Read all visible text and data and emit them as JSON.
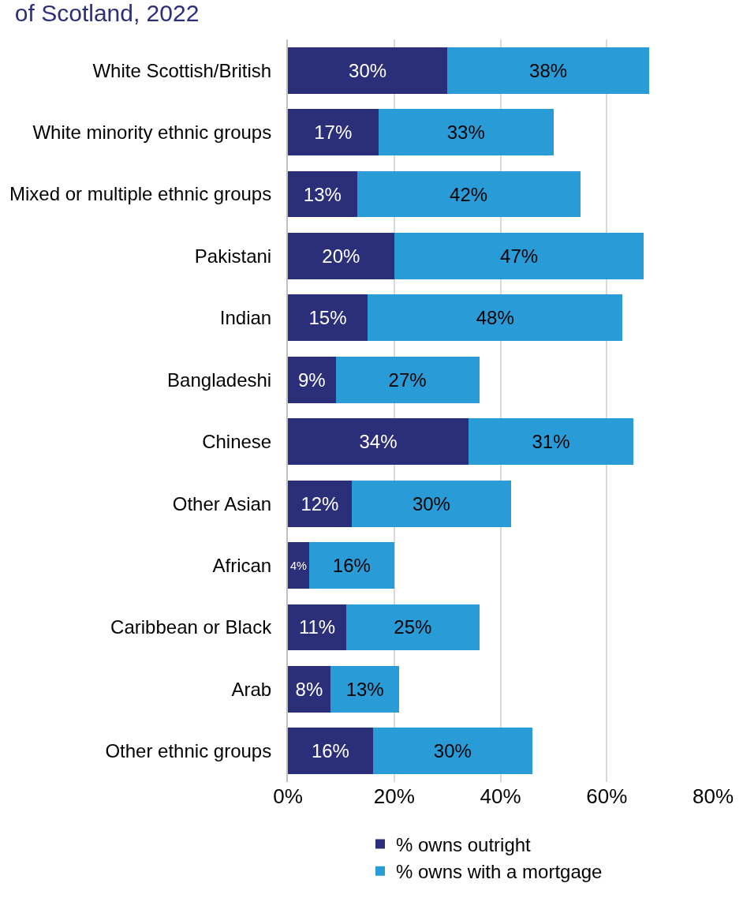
{
  "chart_data": {
    "type": "bar",
    "title": "of Scotland, 2022",
    "orientation": "horizontal",
    "stacked": true,
    "categories": [
      "White Scottish/British",
      "White minority ethnic groups",
      "Mixed or multiple ethnic groups",
      "Pakistani",
      "Indian",
      "Bangladeshi",
      "Chinese",
      "Other Asian",
      "African",
      "Caribbean or Black",
      "Arab",
      "Other ethnic groups"
    ],
    "series": [
      {
        "name": "% owns outright",
        "color": "#2b2f7a",
        "values": [
          30,
          17,
          13,
          20,
          15,
          9,
          34,
          12,
          4,
          11,
          8,
          16
        ],
        "value_labels": [
          "30%",
          "17%",
          "13%",
          "20%",
          "15%",
          "9%",
          "34%",
          "12%",
          "4%",
          "11%",
          "8%",
          "16%"
        ]
      },
      {
        "name": "% owns with a mortgage",
        "color": "#299bd7",
        "values": [
          38,
          33,
          42,
          47,
          48,
          27,
          31,
          30,
          16,
          25,
          13,
          30
        ],
        "value_labels": [
          "38%",
          "33%",
          "42%",
          "47%",
          "48%",
          "27%",
          "31%",
          "30%",
          "16%",
          "25%",
          "13%",
          "30%"
        ]
      }
    ],
    "xlim": [
      0,
      80
    ],
    "xticks": [
      {
        "value": 0,
        "label": "0%"
      },
      {
        "value": 20,
        "label": "20%"
      },
      {
        "value": 40,
        "label": "40%"
      },
      {
        "value": 60,
        "label": "60%"
      },
      {
        "value": 80,
        "label": "80%"
      }
    ],
    "grid": "x",
    "legend": "bottom"
  }
}
